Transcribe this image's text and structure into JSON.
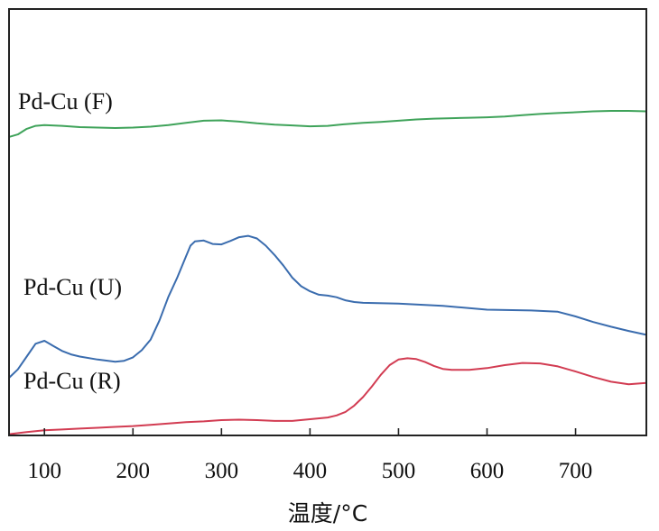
{
  "chart_data": {
    "type": "line",
    "title": "",
    "xlabel": "温度/°C",
    "ylabel": "",
    "xlim": [
      60,
      780
    ],
    "ylim": [
      0,
      100
    ],
    "grid": false,
    "x_ticks": [
      100,
      200,
      300,
      400,
      500,
      600,
      700
    ],
    "series": [
      {
        "name": "Pd-Cu (F)",
        "color": "#3fa35a",
        "points": [
          [
            60,
            70.0
          ],
          [
            70,
            70.6
          ],
          [
            80,
            71.9
          ],
          [
            90,
            72.6
          ],
          [
            100,
            72.8
          ],
          [
            120,
            72.6
          ],
          [
            140,
            72.3
          ],
          [
            160,
            72.2
          ],
          [
            180,
            72.1
          ],
          [
            200,
            72.2
          ],
          [
            220,
            72.4
          ],
          [
            240,
            72.8
          ],
          [
            260,
            73.3
          ],
          [
            280,
            73.8
          ],
          [
            300,
            73.9
          ],
          [
            320,
            73.6
          ],
          [
            340,
            73.2
          ],
          [
            360,
            72.9
          ],
          [
            380,
            72.7
          ],
          [
            400,
            72.5
          ],
          [
            420,
            72.6
          ],
          [
            440,
            73.0
          ],
          [
            460,
            73.3
          ],
          [
            480,
            73.5
          ],
          [
            500,
            73.8
          ],
          [
            520,
            74.1
          ],
          [
            540,
            74.3
          ],
          [
            560,
            74.4
          ],
          [
            580,
            74.5
          ],
          [
            600,
            74.6
          ],
          [
            620,
            74.8
          ],
          [
            640,
            75.1
          ],
          [
            660,
            75.4
          ],
          [
            680,
            75.6
          ],
          [
            700,
            75.8
          ],
          [
            720,
            76.0
          ],
          [
            740,
            76.1
          ],
          [
            760,
            76.1
          ],
          [
            780,
            76.0
          ]
        ]
      },
      {
        "name": "Pd-Cu (U)",
        "color": "#3a6cae",
        "points": [
          [
            60,
            13.5
          ],
          [
            70,
            15.5
          ],
          [
            80,
            18.5
          ],
          [
            90,
            21.5
          ],
          [
            100,
            22.2
          ],
          [
            110,
            21.0
          ],
          [
            120,
            19.8
          ],
          [
            130,
            19.0
          ],
          [
            140,
            18.5
          ],
          [
            160,
            17.8
          ],
          [
            180,
            17.3
          ],
          [
            190,
            17.5
          ],
          [
            200,
            18.3
          ],
          [
            210,
            20.0
          ],
          [
            220,
            22.5
          ],
          [
            230,
            27.0
          ],
          [
            240,
            32.5
          ],
          [
            250,
            37.0
          ],
          [
            260,
            42.0
          ],
          [
            265,
            44.5
          ],
          [
            270,
            45.5
          ],
          [
            280,
            45.7
          ],
          [
            290,
            44.9
          ],
          [
            300,
            44.8
          ],
          [
            310,
            45.6
          ],
          [
            320,
            46.5
          ],
          [
            330,
            46.8
          ],
          [
            340,
            46.2
          ],
          [
            350,
            44.5
          ],
          [
            360,
            42.3
          ],
          [
            370,
            39.8
          ],
          [
            380,
            37.0
          ],
          [
            390,
            35.0
          ],
          [
            400,
            33.8
          ],
          [
            410,
            33.0
          ],
          [
            420,
            32.8
          ],
          [
            430,
            32.4
          ],
          [
            440,
            31.7
          ],
          [
            450,
            31.3
          ],
          [
            460,
            31.1
          ],
          [
            500,
            30.9
          ],
          [
            550,
            30.4
          ],
          [
            600,
            29.5
          ],
          [
            650,
            29.3
          ],
          [
            680,
            29.0
          ],
          [
            700,
            27.9
          ],
          [
            720,
            26.6
          ],
          [
            740,
            25.5
          ],
          [
            760,
            24.5
          ],
          [
            780,
            23.6
          ]
        ]
      },
      {
        "name": "Pd-Cu (R)",
        "color": "#d23c52",
        "points": [
          [
            60,
            0.3
          ],
          [
            80,
            0.8
          ],
          [
            100,
            1.2
          ],
          [
            120,
            1.4
          ],
          [
            140,
            1.6
          ],
          [
            160,
            1.8
          ],
          [
            180,
            2.0
          ],
          [
            200,
            2.2
          ],
          [
            220,
            2.5
          ],
          [
            240,
            2.8
          ],
          [
            260,
            3.1
          ],
          [
            280,
            3.3
          ],
          [
            300,
            3.6
          ],
          [
            320,
            3.7
          ],
          [
            340,
            3.6
          ],
          [
            360,
            3.4
          ],
          [
            380,
            3.4
          ],
          [
            400,
            3.8
          ],
          [
            420,
            4.2
          ],
          [
            430,
            4.7
          ],
          [
            440,
            5.5
          ],
          [
            450,
            7.0
          ],
          [
            460,
            9.0
          ],
          [
            470,
            11.5
          ],
          [
            480,
            14.2
          ],
          [
            490,
            16.5
          ],
          [
            500,
            17.8
          ],
          [
            510,
            18.1
          ],
          [
            520,
            17.9
          ],
          [
            530,
            17.2
          ],
          [
            540,
            16.3
          ],
          [
            550,
            15.6
          ],
          [
            560,
            15.4
          ],
          [
            580,
            15.4
          ],
          [
            600,
            15.8
          ],
          [
            620,
            16.5
          ],
          [
            640,
            17.0
          ],
          [
            660,
            16.9
          ],
          [
            680,
            16.2
          ],
          [
            700,
            15.0
          ],
          [
            720,
            13.7
          ],
          [
            740,
            12.6
          ],
          [
            760,
            12.0
          ],
          [
            780,
            12.3
          ]
        ]
      }
    ]
  }
}
